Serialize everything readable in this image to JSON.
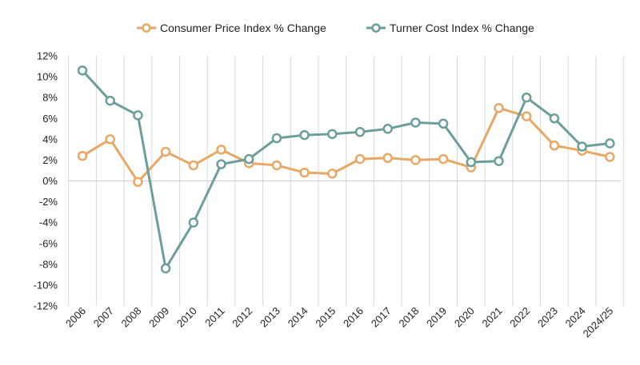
{
  "chart_data": {
    "type": "line",
    "categories": [
      "2006",
      "2007",
      "2008",
      "2009",
      "2010",
      "2011",
      "2012",
      "2013",
      "2014",
      "2015",
      "2016",
      "2017",
      "2018",
      "2019",
      "2020",
      "2021",
      "2022",
      "2023",
      "2024",
      "2024/25"
    ],
    "series": [
      {
        "name": "Consumer Price Index % Change",
        "color": "#E8A765",
        "values": [
          2.4,
          4.0,
          -0.1,
          2.8,
          1.5,
          3.0,
          1.7,
          1.5,
          0.8,
          0.7,
          2.1,
          2.2,
          2.0,
          2.1,
          1.3,
          7.0,
          6.2,
          3.4,
          2.9,
          2.3
        ]
      },
      {
        "name": "Turner Cost Index % Change",
        "color": "#6B9E9C",
        "values": [
          10.6,
          7.7,
          6.3,
          -8.4,
          -4.0,
          1.6,
          2.1,
          4.1,
          4.4,
          4.5,
          4.7,
          5.0,
          5.6,
          5.5,
          1.8,
          1.9,
          8.0,
          6.0,
          3.3,
          3.6
        ]
      }
    ],
    "yticks": [
      12,
      10,
      8,
      6,
      4,
      2,
      0,
      -2,
      -4,
      -6,
      -8,
      -10,
      -12
    ],
    "ylabels": [
      "12%",
      "10%",
      "8%",
      "6%",
      "4%",
      "2%",
      "0%",
      "-2%",
      "-4%",
      "-6%",
      "-8%",
      "-10%",
      "-12%"
    ],
    "ylim": [
      -12,
      12
    ],
    "grid": "vertical",
    "legend_position": "top-center",
    "title": "",
    "xlabel": "",
    "ylabel": ""
  }
}
